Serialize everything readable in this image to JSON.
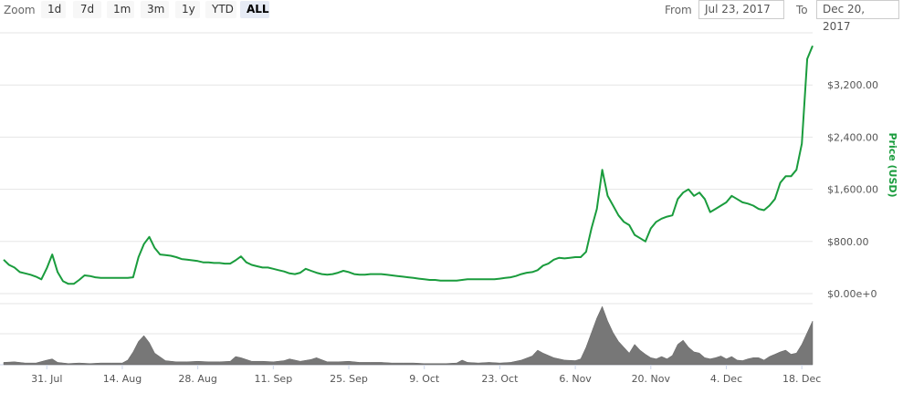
{
  "toolbar": {
    "zoom_label": "Zoom",
    "zoom_buttons": [
      "1d",
      "7d",
      "1m",
      "3m",
      "1y",
      "YTD",
      "ALL"
    ],
    "active_zoom": "ALL",
    "from_label": "From",
    "from_value": "Jul 23, 2017",
    "to_label": "To",
    "to_value": "Dec 20, 2017"
  },
  "colors": {
    "price_line": "#1a9c3d",
    "volume": "#777777",
    "grid": "#e6e6e6"
  },
  "chart_data": {
    "type": "line",
    "title": "",
    "ylabel": "Price (USD)",
    "ylim": [
      0,
      4000
    ],
    "y_ticks": [
      0,
      800,
      1600,
      2400,
      3200
    ],
    "y_tick_labels": [
      "$0.00e+0",
      "$800.00",
      "$1,600.00",
      "$2,400.00",
      "$3,200.00"
    ],
    "x_tick_labels": [
      "31. Jul",
      "14. Aug",
      "28. Aug",
      "11. Sep",
      "25. Sep",
      "9. Oct",
      "23. Oct",
      "6. Nov",
      "20. Nov",
      "4. Dec",
      "18. Dec"
    ],
    "x_tick_days": [
      8,
      22,
      36,
      50,
      64,
      78,
      92,
      106,
      120,
      134,
      148
    ],
    "x_domain_days": [
      0,
      150
    ],
    "series": [
      {
        "values_format": "[day offset from Jul 23, price USD]",
        "points": [
          [
            0,
            520
          ],
          [
            1,
            440
          ],
          [
            2,
            400
          ],
          [
            3,
            330
          ],
          [
            4,
            310
          ],
          [
            5,
            290
          ],
          [
            6,
            260
          ],
          [
            7,
            220
          ],
          [
            8,
            390
          ],
          [
            9,
            600
          ],
          [
            10,
            330
          ],
          [
            11,
            190
          ],
          [
            12,
            150
          ],
          [
            13,
            150
          ],
          [
            14,
            210
          ],
          [
            15,
            280
          ],
          [
            16,
            270
          ],
          [
            17,
            250
          ],
          [
            18,
            240
          ],
          [
            19,
            240
          ],
          [
            20,
            240
          ],
          [
            21,
            240
          ],
          [
            22,
            240
          ],
          [
            23,
            240
          ],
          [
            24,
            250
          ],
          [
            25,
            560
          ],
          [
            26,
            760
          ],
          [
            27,
            870
          ],
          [
            28,
            700
          ],
          [
            29,
            600
          ],
          [
            30,
            590
          ],
          [
            31,
            580
          ],
          [
            32,
            560
          ],
          [
            33,
            530
          ],
          [
            34,
            520
          ],
          [
            35,
            510
          ],
          [
            36,
            500
          ],
          [
            37,
            480
          ],
          [
            38,
            480
          ],
          [
            39,
            470
          ],
          [
            40,
            470
          ],
          [
            41,
            460
          ],
          [
            42,
            460
          ],
          [
            43,
            510
          ],
          [
            44,
            570
          ],
          [
            45,
            480
          ],
          [
            46,
            440
          ],
          [
            47,
            420
          ],
          [
            48,
            400
          ],
          [
            49,
            400
          ],
          [
            50,
            380
          ],
          [
            51,
            360
          ],
          [
            52,
            340
          ],
          [
            53,
            310
          ],
          [
            54,
            300
          ],
          [
            55,
            320
          ],
          [
            56,
            380
          ],
          [
            57,
            350
          ],
          [
            58,
            320
          ],
          [
            59,
            300
          ],
          [
            60,
            290
          ],
          [
            61,
            300
          ],
          [
            62,
            320
          ],
          [
            63,
            350
          ],
          [
            64,
            330
          ],
          [
            65,
            300
          ],
          [
            66,
            290
          ],
          [
            67,
            290
          ],
          [
            68,
            300
          ],
          [
            69,
            300
          ],
          [
            70,
            300
          ],
          [
            71,
            290
          ],
          [
            72,
            280
          ],
          [
            73,
            270
          ],
          [
            74,
            260
          ],
          [
            75,
            250
          ],
          [
            76,
            240
          ],
          [
            77,
            230
          ],
          [
            78,
            220
          ],
          [
            79,
            210
          ],
          [
            80,
            210
          ],
          [
            81,
            200
          ],
          [
            82,
            200
          ],
          [
            83,
            200
          ],
          [
            84,
            200
          ],
          [
            85,
            210
          ],
          [
            86,
            220
          ],
          [
            87,
            220
          ],
          [
            88,
            220
          ],
          [
            89,
            220
          ],
          [
            90,
            220
          ],
          [
            91,
            220
          ],
          [
            92,
            230
          ],
          [
            93,
            240
          ],
          [
            94,
            250
          ],
          [
            95,
            270
          ],
          [
            96,
            300
          ],
          [
            97,
            320
          ],
          [
            98,
            330
          ],
          [
            99,
            360
          ],
          [
            100,
            430
          ],
          [
            101,
            460
          ],
          [
            102,
            520
          ],
          [
            103,
            550
          ],
          [
            104,
            540
          ],
          [
            105,
            550
          ],
          [
            106,
            560
          ],
          [
            107,
            560
          ],
          [
            108,
            640
          ],
          [
            109,
            1000
          ],
          [
            110,
            1300
          ],
          [
            111,
            1900
          ],
          [
            112,
            1500
          ],
          [
            113,
            1350
          ],
          [
            114,
            1200
          ],
          [
            115,
            1100
          ],
          [
            116,
            1050
          ],
          [
            117,
            900
          ],
          [
            118,
            850
          ],
          [
            119,
            800
          ],
          [
            120,
            1000
          ],
          [
            121,
            1100
          ],
          [
            122,
            1150
          ],
          [
            123,
            1180
          ],
          [
            124,
            1200
          ],
          [
            125,
            1450
          ],
          [
            126,
            1550
          ],
          [
            127,
            1600
          ],
          [
            128,
            1500
          ],
          [
            129,
            1550
          ],
          [
            130,
            1450
          ],
          [
            131,
            1250
          ],
          [
            132,
            1300
          ],
          [
            133,
            1350
          ],
          [
            134,
            1400
          ],
          [
            135,
            1500
          ],
          [
            136,
            1450
          ],
          [
            137,
            1400
          ],
          [
            138,
            1380
          ],
          [
            139,
            1350
          ],
          [
            140,
            1300
          ],
          [
            141,
            1280
          ],
          [
            142,
            1350
          ],
          [
            143,
            1450
          ],
          [
            144,
            1700
          ],
          [
            145,
            1800
          ],
          [
            146,
            1800
          ],
          [
            147,
            1900
          ],
          [
            148,
            2300
          ],
          [
            149,
            3600
          ],
          [
            150,
            3800
          ]
        ]
      }
    ],
    "volume_series": {
      "values_format": "[day offset, relative volume 0-1]",
      "points": [
        [
          0,
          0.04
        ],
        [
          2,
          0.05
        ],
        [
          4,
          0.03
        ],
        [
          6,
          0.03
        ],
        [
          8,
          0.08
        ],
        [
          9,
          0.1
        ],
        [
          10,
          0.04
        ],
        [
          12,
          0.02
        ],
        [
          14,
          0.03
        ],
        [
          16,
          0.02
        ],
        [
          18,
          0.03
        ],
        [
          20,
          0.03
        ],
        [
          22,
          0.03
        ],
        [
          23,
          0.08
        ],
        [
          24,
          0.22
        ],
        [
          25,
          0.4
        ],
        [
          26,
          0.5
        ],
        [
          27,
          0.38
        ],
        [
          28,
          0.2
        ],
        [
          30,
          0.07
        ],
        [
          32,
          0.05
        ],
        [
          34,
          0.05
        ],
        [
          36,
          0.06
        ],
        [
          38,
          0.05
        ],
        [
          40,
          0.05
        ],
        [
          42,
          0.06
        ],
        [
          43,
          0.14
        ],
        [
          44,
          0.12
        ],
        [
          46,
          0.06
        ],
        [
          48,
          0.06
        ],
        [
          50,
          0.05
        ],
        [
          52,
          0.07
        ],
        [
          53,
          0.1
        ],
        [
          55,
          0.06
        ],
        [
          57,
          0.09
        ],
        [
          58,
          0.12
        ],
        [
          60,
          0.05
        ],
        [
          62,
          0.05
        ],
        [
          64,
          0.06
        ],
        [
          66,
          0.04
        ],
        [
          68,
          0.04
        ],
        [
          70,
          0.04
        ],
        [
          72,
          0.03
        ],
        [
          74,
          0.03
        ],
        [
          76,
          0.03
        ],
        [
          78,
          0.02
        ],
        [
          80,
          0.02
        ],
        [
          82,
          0.02
        ],
        [
          84,
          0.03
        ],
        [
          85,
          0.08
        ],
        [
          86,
          0.04
        ],
        [
          88,
          0.03
        ],
        [
          90,
          0.04
        ],
        [
          92,
          0.03
        ],
        [
          94,
          0.04
        ],
        [
          96,
          0.08
        ],
        [
          98,
          0.15
        ],
        [
          99,
          0.25
        ],
        [
          100,
          0.2
        ],
        [
          102,
          0.12
        ],
        [
          104,
          0.08
        ],
        [
          106,
          0.07
        ],
        [
          107,
          0.1
        ],
        [
          108,
          0.3
        ],
        [
          109,
          0.55
        ],
        [
          110,
          0.8
        ],
        [
          111,
          1.0
        ],
        [
          112,
          0.75
        ],
        [
          113,
          0.55
        ],
        [
          114,
          0.4
        ],
        [
          115,
          0.3
        ],
        [
          116,
          0.2
        ],
        [
          117,
          0.35
        ],
        [
          118,
          0.25
        ],
        [
          119,
          0.18
        ],
        [
          120,
          0.12
        ],
        [
          121,
          0.1
        ],
        [
          122,
          0.14
        ],
        [
          123,
          0.1
        ],
        [
          124,
          0.16
        ],
        [
          125,
          0.35
        ],
        [
          126,
          0.42
        ],
        [
          127,
          0.3
        ],
        [
          128,
          0.22
        ],
        [
          129,
          0.2
        ],
        [
          130,
          0.12
        ],
        [
          131,
          0.1
        ],
        [
          132,
          0.12
        ],
        [
          133,
          0.15
        ],
        [
          134,
          0.1
        ],
        [
          135,
          0.14
        ],
        [
          136,
          0.08
        ],
        [
          137,
          0.07
        ],
        [
          138,
          0.1
        ],
        [
          139,
          0.12
        ],
        [
          140,
          0.12
        ],
        [
          141,
          0.08
        ],
        [
          142,
          0.14
        ],
        [
          143,
          0.18
        ],
        [
          144,
          0.22
        ],
        [
          145,
          0.25
        ],
        [
          146,
          0.18
        ],
        [
          147,
          0.2
        ],
        [
          148,
          0.35
        ],
        [
          149,
          0.55
        ],
        [
          150,
          0.75
        ]
      ]
    },
    "grid": true,
    "legend": "none"
  }
}
